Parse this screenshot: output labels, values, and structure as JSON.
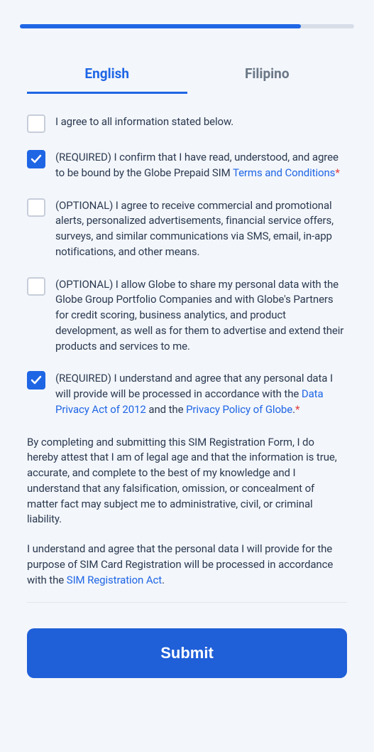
{
  "progress": {
    "percent": 84,
    "track_color": "#d7dee8",
    "fill_color": "#1f66e5"
  },
  "tabs": {
    "english": "English",
    "filipino": "Filipino"
  },
  "checks": {
    "agree_all": {
      "checked": false,
      "text": "I agree to all information stated below."
    },
    "terms": {
      "checked": true,
      "prefix": "(REQUIRED) I confirm that I have read, understood, and agree to be bound by the Globe Prepaid SIM ",
      "link": "Terms and Conditions",
      "suffix_mark": "*"
    },
    "promo": {
      "checked": false,
      "text": "(OPTIONAL) I agree to receive commercial and promotional alerts, personalized advertisements, financial service offers, surveys, and similar communications via SMS, email, in-app notifications, and other means."
    },
    "share": {
      "checked": false,
      "text": "(OPTIONAL) I allow Globe to share my personal data with the Globe Group Portfolio Companies and with Globe's Partners for credit scoring, business analytics, and product development, as well as for them to advertise and extend their products and services to me."
    },
    "privacy": {
      "checked": true,
      "prefix": "(REQUIRED) I understand and agree that any personal data I will provide will be processed in accordance with the ",
      "link1": "Data Privacy Act of 2012",
      "middle": " and the ",
      "link2": "Privacy Policy of Globe",
      "suffix": ".",
      "suffix_mark": "*"
    }
  },
  "paragraphs": {
    "attest": "By completing and submitting this SIM Registration Form, I do hereby attest that I am of legal age and that the information is true, accurate, and complete to the best of my knowledge and I understand that any falsification, omission, or concealment of matter fact may subject me to administrative, civil, or criminal liability.",
    "sim_prefix": "I understand and agree that the personal data I will provide for the purpose of SIM Card Registration will be processed in accordance with the ",
    "sim_link": "SIM Registration Act",
    "sim_suffix": "."
  },
  "submit_label": "Submit",
  "colors": {
    "primary": "#1f66e5",
    "submit_bg": "#1f5fd8",
    "text": "#2b3a50",
    "inactive_tab": "#6a7786",
    "required_mark": "#e03b3b",
    "page_bg": "#f3f6fb",
    "checkbox_border": "#c7ceda",
    "divider": "#e2e7ef"
  }
}
